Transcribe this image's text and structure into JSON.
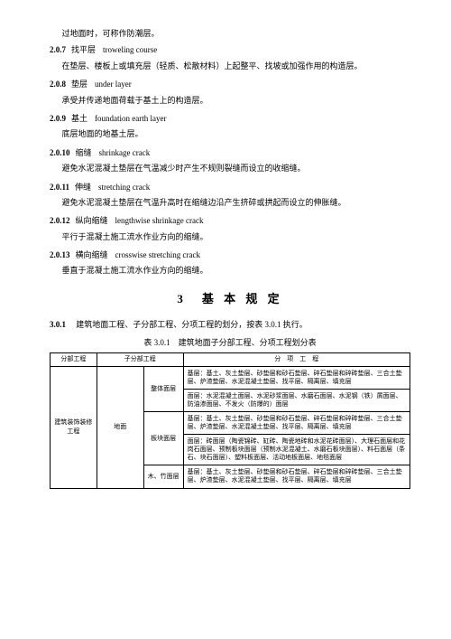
{
  "intro_para": "过地面时，可称作防潮层。",
  "terms": [
    {
      "no": "2.0.7",
      "cn": "找平层",
      "en": "troweling course",
      "def": "在垫层、楼板上或填充层（轻质、松散材料）上起整平、找坡或加强作用的构造层。"
    },
    {
      "no": "2.0.8",
      "cn": "垫层",
      "en": "under layer",
      "def": "承受并传递地面荷载于基土上的构造层。"
    },
    {
      "no": "2.0.9",
      "cn": "基土",
      "en": "foundation earth layer",
      "def": "底层地面的地基土层。"
    },
    {
      "no": "2.0.10",
      "cn": "缩缝",
      "en": "shrinkage crack",
      "def": "避免水泥混凝土垫层在气温减少时产生不规则裂缝而设立的收缩缝。"
    },
    {
      "no": "2.0.11",
      "cn": "伸缝",
      "en": "stretching crack",
      "def": "避免水泥混凝土垫层在气温升高时在缩缝边沿产生挤碎或拱起而设立的伸胀缝。"
    },
    {
      "no": "2.0.12",
      "cn": "纵向缩缝",
      "en": "lengthwise shrinkage crack",
      "def": "平行于混凝土施工流水作业方向的缩缝。"
    },
    {
      "no": "2.0.13",
      "cn": "横向缩缝",
      "en": "crosswise stretching crack",
      "def": "垂直于混凝土施工流水作业方向的缩缝。"
    }
  ],
  "section_title": "3　基 本 规 定",
  "rule": {
    "no": "3.0.1",
    "text": "建筑地面工程、子分部工程、分项工程的划分，按表 3.0.1 执行。"
  },
  "table_caption": "表 3.0.1　建筑地面子分部工程、分项工程划分表",
  "table": {
    "headers": [
      "分部工程",
      "子分部工程",
      "",
      "分　项　工　程"
    ],
    "col1": "建筑装饰装修工程",
    "col2": "地面",
    "rows": [
      {
        "sub": "整体面层",
        "desc": "基层：基土、灰土垫层、砂垫层和砂石垫层、碎石垫层和碎砖垫层、三合土垫层、炉渣垫层、水泥混凝土垫层、找平层、隔离层、填充层"
      },
      {
        "sub": "",
        "desc": "面层：水泥混凝土面层、水泥砂浆面层、水磨石面层、水泥钢（铁）屑面层、防油渗面层、不发火（防爆的）面层"
      },
      {
        "sub": "板块面层",
        "desc": "基层：基土、灰土垫层、砂垫层和砂石垫层、碎石垫层和碎砖垫层、三合土垫层、炉渣垫层、水泥混凝土垫层、找平层、隔离层、填充层"
      },
      {
        "sub": "",
        "desc": "面层：砖面层（陶瓷锦砖、缸砖、陶瓷地砖和水泥花砖面层）、大理石面层和花岗石面层、预制板块面层（预制水泥混凝土、水磨石板块面层）、料石面层（条石、块石面层）、塑料板面层、活动地板面层、地毯面层"
      },
      {
        "sub": "木、竹面层",
        "desc": "基层：基土、灰土垫层、砂垫层和砂石垫层、碎石垫层和碎砖垫层、三合土垫层、炉渣垫层、水泥混凝土垫层、找平层、隔离层、填充层"
      }
    ]
  }
}
